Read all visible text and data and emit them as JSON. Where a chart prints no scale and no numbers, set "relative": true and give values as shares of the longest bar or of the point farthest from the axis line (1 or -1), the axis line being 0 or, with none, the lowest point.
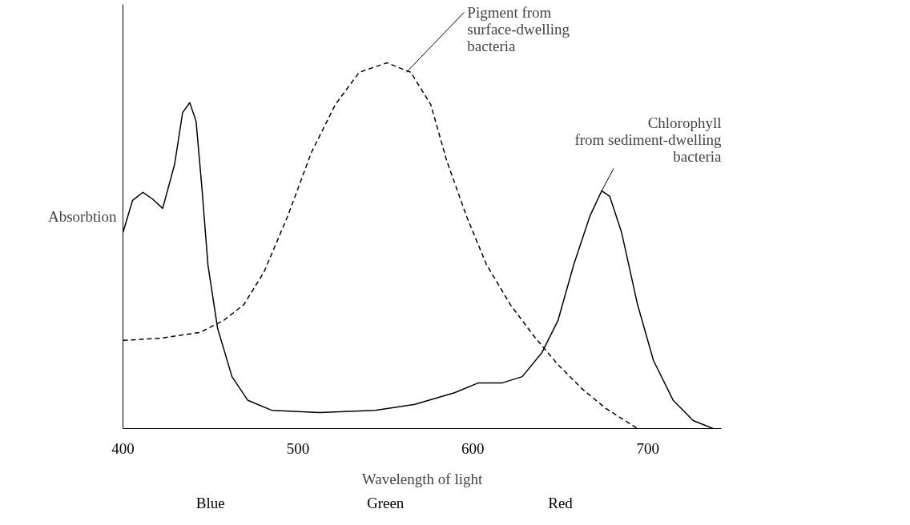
{
  "chart_data": {
    "type": "line",
    "relative": true,
    "xlabel": "Wavelength of light",
    "ylabel": "Absorbtion",
    "xlim": [
      400,
      742
    ],
    "xticks": [
      400,
      500,
      600,
      700
    ],
    "grid": false,
    "marker": "none",
    "series": [
      {
        "color": "#000000",
        "line_style": "solid",
        "x": [
          400,
          405.5,
          411.4,
          416.8,
          422.7,
          429.5,
          434.1,
          438.2,
          441.8,
          445,
          448.6,
          454.1,
          462.3,
          471.4,
          485,
          512.3,
          544.1,
          566.8,
          589.5,
          603.2,
          616.8,
          628.2,
          639.5,
          648.6,
          657.7,
          666.8,
          673.6,
          678.2,
          685,
          694.1,
          703.2,
          714.5,
          725.9,
          737.3
        ],
        "values": [
          0.536,
          0.624,
          0.646,
          0.628,
          0.602,
          0.722,
          0.864,
          0.891,
          0.84,
          0.665,
          0.446,
          0.274,
          0.142,
          0.077,
          0.05,
          0.044,
          0.05,
          0.066,
          0.098,
          0.125,
          0.125,
          0.142,
          0.208,
          0.295,
          0.449,
          0.58,
          0.65,
          0.635,
          0.536,
          0.339,
          0.186,
          0.077,
          0.022,
          0
        ]
      },
      {
        "color": "#000000",
        "line_style": "dashed",
        "x": [
          400,
          421.4,
          444.1,
          457.7,
          469.1,
          480.5,
          494.1,
          507.7,
          521.4,
          535,
          550.9,
          564.5,
          575.9,
          585,
          596.4,
          607.7,
          621.4,
          635,
          648.6,
          662.3,
          676,
          694.1
        ],
        "values": [
          0.241,
          0.247,
          0.263,
          0.296,
          0.339,
          0.427,
          0.58,
          0.755,
          0.886,
          0.974,
          1,
          0.974,
          0.886,
          0.733,
          0.58,
          0.449,
          0.339,
          0.252,
          0.175,
          0.109,
          0.055,
          0
        ]
      }
    ],
    "annotations": [
      {
        "text": "Pigment from\nsurface-dwelling\nbacteria",
        "x": 562,
        "y": 0.974
      },
      {
        "text": "Chlorophyll\nfrom sediment-dwelling\nbacteria",
        "x": 673.6,
        "y": 0.65
      },
      "Blue",
      "Green",
      "Red"
    ]
  }
}
